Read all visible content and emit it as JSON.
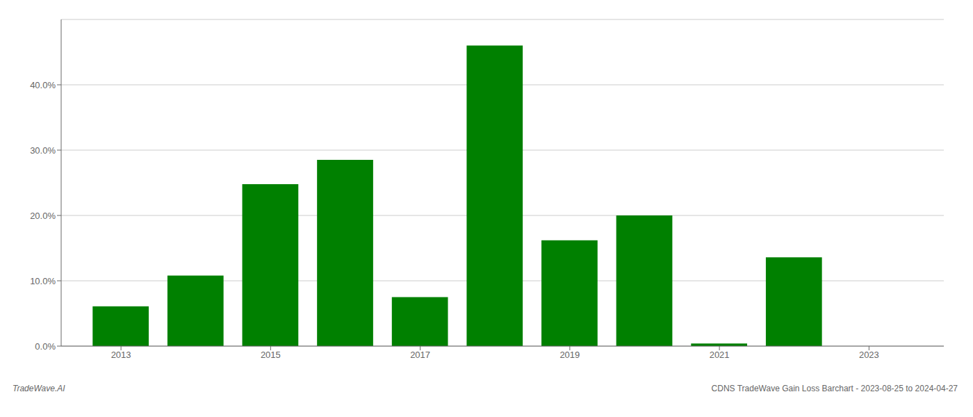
{
  "chart_data": {
    "type": "bar",
    "x": [
      2013,
      2014,
      2015,
      2016,
      2017,
      2018,
      2019,
      2020,
      2021,
      2022
    ],
    "values": [
      0.061,
      0.108,
      0.248,
      0.285,
      0.075,
      0.46,
      0.162,
      0.2,
      0.004,
      0.136
    ],
    "color": "#008000",
    "xlim": [
      2012.2,
      2024.0
    ],
    "xticks": [
      2013,
      2015,
      2017,
      2019,
      2021,
      2023
    ],
    "ylim": [
      0,
      0.5
    ],
    "yticks": [
      {
        "value": 0.0,
        "label": "0.0%"
      },
      {
        "value": 0.1,
        "label": "10.0%"
      },
      {
        "value": 0.2,
        "label": "20.0%"
      },
      {
        "value": 0.3,
        "label": "30.0%"
      },
      {
        "value": 0.4,
        "label": "40.0%"
      }
    ],
    "grid": true,
    "annotations": [
      "TradeWave.AI",
      "CDNS TradeWave Gain Loss Barchart - 2023-08-25 to 2024-04-27"
    ]
  }
}
